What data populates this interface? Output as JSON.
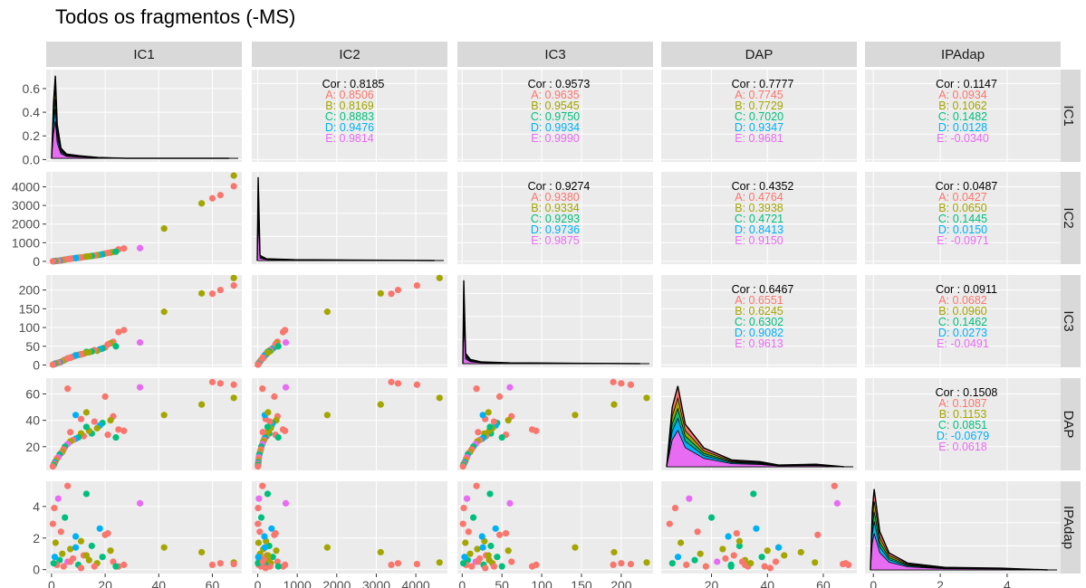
{
  "title": "Todos os fragmentos (-MS)",
  "colors": {
    "A": "#F8766D",
    "B": "#A3A500",
    "C": "#00BF7D",
    "D": "#00B0F6",
    "E": "#E76BF3",
    "overall": "#000000",
    "panel_bg": "#EBEBEB",
    "strip_bg": "#D9D9D9",
    "grid_major": "#FFFFFF"
  },
  "chart_data": {
    "type": "scatter",
    "chart_kind": "pairs-matrix (ggpairs)",
    "variables": [
      "IC1",
      "IC2",
      "IC3",
      "DAP",
      "IPAdap"
    ],
    "groups": [
      "A",
      "B",
      "C",
      "D",
      "E"
    ],
    "axes": {
      "IC1": {
        "range": [
          -2,
          71
        ],
        "ticks": [
          0,
          20,
          40,
          60
        ]
      },
      "IC2": {
        "range": [
          -150,
          4800
        ],
        "ticks": [
          0,
          1000,
          2000,
          3000,
          4000
        ]
      },
      "IC3": {
        "range": [
          -6,
          240
        ],
        "ticks": [
          0,
          50,
          100,
          150,
          200
        ]
      },
      "DAP": {
        "range": [
          2,
          72
        ],
        "ticks": [
          20,
          40,
          60
        ]
      },
      "IPAdap": {
        "range": [
          -0.25,
          5.6
        ],
        "ticks": [
          0,
          2,
          4
        ]
      }
    },
    "density_ylim": {
      "IC1": [
        -0.02,
        0.76
      ]
    },
    "density_ticks": {
      "IC1": [
        0.0,
        0.2,
        0.4,
        0.6
      ]
    },
    "correlations": [
      {
        "row": "IC1",
        "col": "IC2",
        "overall": "Cor : 0.8185",
        "groups": [
          "A: 0.8506",
          "B: 0.8169",
          "C: 0.8883",
          "D: 0.9476",
          "E: 0.9814"
        ]
      },
      {
        "row": "IC1",
        "col": "IC3",
        "overall": "Cor : 0.9573",
        "groups": [
          "A: 0.9635",
          "B: 0.9545",
          "C: 0.9750",
          "D: 0.9934",
          "E: 0.9990"
        ]
      },
      {
        "row": "IC1",
        "col": "DAP",
        "overall": "Cor : 0.7777",
        "groups": [
          "A: 0.7745",
          "B: 0.7729",
          "C: 0.7020",
          "D: 0.9347",
          "E: 0.9681"
        ]
      },
      {
        "row": "IC1",
        "col": "IPAdap",
        "overall": "Cor : 0.1147",
        "groups": [
          "A: 0.0934",
          "B: 0.1062",
          "C: 0.1482",
          "D: 0.0128",
          "E: -0.0340"
        ]
      },
      {
        "row": "IC2",
        "col": "IC3",
        "overall": "Cor : 0.9274",
        "groups": [
          "A: 0.9380",
          "B: 0.9334",
          "C: 0.9293",
          "D: 0.9736",
          "E: 0.9875"
        ]
      },
      {
        "row": "IC2",
        "col": "DAP",
        "overall": "Cor : 0.4352",
        "groups": [
          "A: 0.4764",
          "B: 0.3938",
          "C: 0.4721",
          "D: 0.8413",
          "E: 0.9150"
        ]
      },
      {
        "row": "IC2",
        "col": "IPAdap",
        "overall": "Cor : 0.0487",
        "groups": [
          "A: 0.0427",
          "B: 0.0650",
          "C: 0.1445",
          "D: 0.0150",
          "E: -0.0971"
        ]
      },
      {
        "row": "IC3",
        "col": "DAP",
        "overall": "Cor : 0.6467",
        "groups": [
          "A: 0.6551",
          "B: 0.6245",
          "C: 0.6302",
          "D: 0.9082",
          "E: 0.9613"
        ]
      },
      {
        "row": "IC3",
        "col": "IPAdap",
        "overall": "Cor : 0.0911",
        "groups": [
          "A: 0.0682",
          "B: 0.0960",
          "C: 0.1462",
          "D: 0.0273",
          "E: -0.0491"
        ]
      },
      {
        "row": "DAP",
        "col": "IPAdap",
        "overall": "Cor : 0.1508",
        "groups": [
          "A: 0.1087",
          "B: 0.1153",
          "C: 0.0851",
          "D: -0.0679",
          "E: 0.0618"
        ]
      }
    ],
    "scatter_points": [
      {
        "IC1": 68,
        "IC2": 4600,
        "IC3": 232,
        "DAP": 57,
        "IPAdap": 0.45,
        "g": "B"
      },
      {
        "IC1": 68,
        "IC2": 4030,
        "IC3": 212,
        "DAP": 67,
        "IPAdap": 0.35,
        "g": "A"
      },
      {
        "IC1": 63,
        "IC2": 3550,
        "IC3": 200,
        "DAP": 68,
        "IPAdap": 0.4,
        "g": "A"
      },
      {
        "IC1": 60,
        "IC2": 3380,
        "IC3": 190,
        "DAP": 69,
        "IPAdap": 0.3,
        "g": "A"
      },
      {
        "IC1": 56,
        "IC2": 3110,
        "IC3": 191,
        "DAP": 52,
        "IPAdap": 1.1,
        "g": "B"
      },
      {
        "IC1": 42,
        "IC2": 1760,
        "IC3": 142,
        "DAP": 44,
        "IPAdap": 1.4,
        "g": "B"
      },
      {
        "IC1": 33,
        "IC2": 710,
        "IC3": 60,
        "DAP": 65,
        "IPAdap": 4.2,
        "g": "E"
      },
      {
        "IC1": 27,
        "IC2": 690,
        "IC3": 93,
        "DAP": 32,
        "IPAdap": 0.3,
        "g": "A"
      },
      {
        "IC1": 25,
        "IC2": 640,
        "IC3": 88,
        "DAP": 33,
        "IPAdap": 0.2,
        "g": "A"
      },
      {
        "IC1": 23,
        "IC2": 500,
        "IC3": 62,
        "DAP": 43,
        "IPAdap": 0.5,
        "g": "A"
      },
      {
        "IC1": 22,
        "IC2": 470,
        "IC3": 58,
        "DAP": 40,
        "IPAdap": 1.2,
        "g": "B"
      },
      {
        "IC1": 20,
        "IC2": 420,
        "IC3": 47,
        "DAP": 58,
        "IPAdap": 2.2,
        "g": "A"
      },
      {
        "IC1": 19,
        "IC2": 380,
        "IC3": 44,
        "DAP": 38,
        "IPAdap": 0.8,
        "g": "C"
      },
      {
        "IC1": 18,
        "IC2": 350,
        "IC3": 42,
        "DAP": 36,
        "IPAdap": 2.6,
        "g": "D"
      },
      {
        "IC1": 17,
        "IC2": 330,
        "IC3": 38,
        "DAP": 34,
        "IPAdap": 0.4,
        "g": "B"
      },
      {
        "IC1": 16,
        "IC2": 310,
        "IC3": 40,
        "DAP": 39,
        "IPAdap": 0.2,
        "g": "A"
      },
      {
        "IC1": 15,
        "IC2": 290,
        "IC3": 36,
        "DAP": 30,
        "IPAdap": 1.5,
        "g": "C"
      },
      {
        "IC1": 14,
        "IC2": 270,
        "IC3": 34,
        "DAP": 32,
        "IPAdap": 0.6,
        "g": "B"
      },
      {
        "IC1": 13,
        "IC2": 250,
        "IC3": 35,
        "DAP": 35,
        "IPAdap": 4.8,
        "g": "C"
      },
      {
        "IC1": 12,
        "IC2": 230,
        "IC3": 30,
        "DAP": 28,
        "IPAdap": 0.9,
        "g": "A"
      },
      {
        "IC1": 11,
        "IC2": 210,
        "IC3": 28,
        "DAP": 30,
        "IPAdap": 1.8,
        "g": "B"
      },
      {
        "IC1": 10,
        "IC2": 190,
        "IC3": 27,
        "DAP": 27,
        "IPAdap": 0.3,
        "g": "C"
      },
      {
        "IC1": 9,
        "IC2": 170,
        "IC3": 25,
        "DAP": 26,
        "IPAdap": 2.1,
        "g": "D"
      },
      {
        "IC1": 8,
        "IC2": 160,
        "IC3": 22,
        "DAP": 25,
        "IPAdap": 0.7,
        "g": "A"
      },
      {
        "IC1": 7,
        "IC2": 140,
        "IC3": 19,
        "DAP": 24,
        "IPAdap": 1.3,
        "g": "B"
      },
      {
        "IC1": 6,
        "IC2": 120,
        "IC3": 17,
        "DAP": 22,
        "IPAdap": 0.5,
        "g": "E"
      },
      {
        "IC1": 5,
        "IC2": 90,
        "IC3": 14,
        "DAP": 20,
        "IPAdap": 3.3,
        "g": "C"
      },
      {
        "IC1": 4.5,
        "IC2": 80,
        "IC3": 12,
        "DAP": 18,
        "IPAdap": 0.2,
        "g": "A"
      },
      {
        "IC1": 4,
        "IC2": 60,
        "IC3": 10,
        "DAP": 16,
        "IPAdap": 1.0,
        "g": "B"
      },
      {
        "IC1": 3.5,
        "IC2": 50,
        "IC3": 8,
        "DAP": 15,
        "IPAdap": 2.4,
        "g": "A"
      },
      {
        "IC1": 3,
        "IC2": 40,
        "IC3": 7,
        "DAP": 14,
        "IPAdap": 0.6,
        "g": "C"
      },
      {
        "IC1": 2.5,
        "IC2": 30,
        "IC3": 6,
        "DAP": 12,
        "IPAdap": 4.5,
        "g": "E"
      },
      {
        "IC1": 2,
        "IC2": 25,
        "IC3": 5,
        "DAP": 11,
        "IPAdap": 0.3,
        "g": "A"
      },
      {
        "IC1": 1.5,
        "IC2": 20,
        "IC3": 4,
        "DAP": 9,
        "IPAdap": 1.7,
        "g": "B"
      },
      {
        "IC1": 1.2,
        "IC2": 15,
        "IC3": 3,
        "DAP": 8,
        "IPAdap": 0.8,
        "g": "D"
      },
      {
        "IC1": 1,
        "IC2": 10,
        "IC3": 2,
        "DAP": 7,
        "IPAdap": 3.9,
        "g": "A"
      },
      {
        "IC1": 0.8,
        "IC2": 8,
        "IC3": 1.5,
        "DAP": 6,
        "IPAdap": 0.4,
        "g": "C"
      },
      {
        "IC1": 0.5,
        "IC2": 5,
        "IC3": 1,
        "DAP": 5,
        "IPAdap": 2.9,
        "g": "A"
      },
      {
        "IC1": 6,
        "IC2": 120,
        "IC3": 18,
        "DAP": 64,
        "IPAdap": 5.3,
        "g": "A"
      },
      {
        "IC1": 21,
        "IC2": 450,
        "IC3": 55,
        "DAP": 29,
        "IPAdap": 2.3,
        "g": "A"
      },
      {
        "IC1": 24,
        "IC2": 520,
        "IC3": 50,
        "DAP": 27,
        "IPAdap": 0.2,
        "g": "C"
      },
      {
        "IC1": 11,
        "IC2": 200,
        "IC3": 29,
        "DAP": 41,
        "IPAdap": 0.1,
        "g": "A"
      },
      {
        "IC1": 9,
        "IC2": 180,
        "IC3": 26,
        "DAP": 44,
        "IPAdap": 1.4,
        "g": "D"
      },
      {
        "IC1": 13,
        "IC2": 260,
        "IC3": 33,
        "DAP": 46,
        "IPAdap": 0.9,
        "g": "B"
      },
      {
        "IC1": 7,
        "IC2": 130,
        "IC3": 20,
        "DAP": 31,
        "IPAdap": 0.5,
        "g": "A"
      }
    ]
  }
}
